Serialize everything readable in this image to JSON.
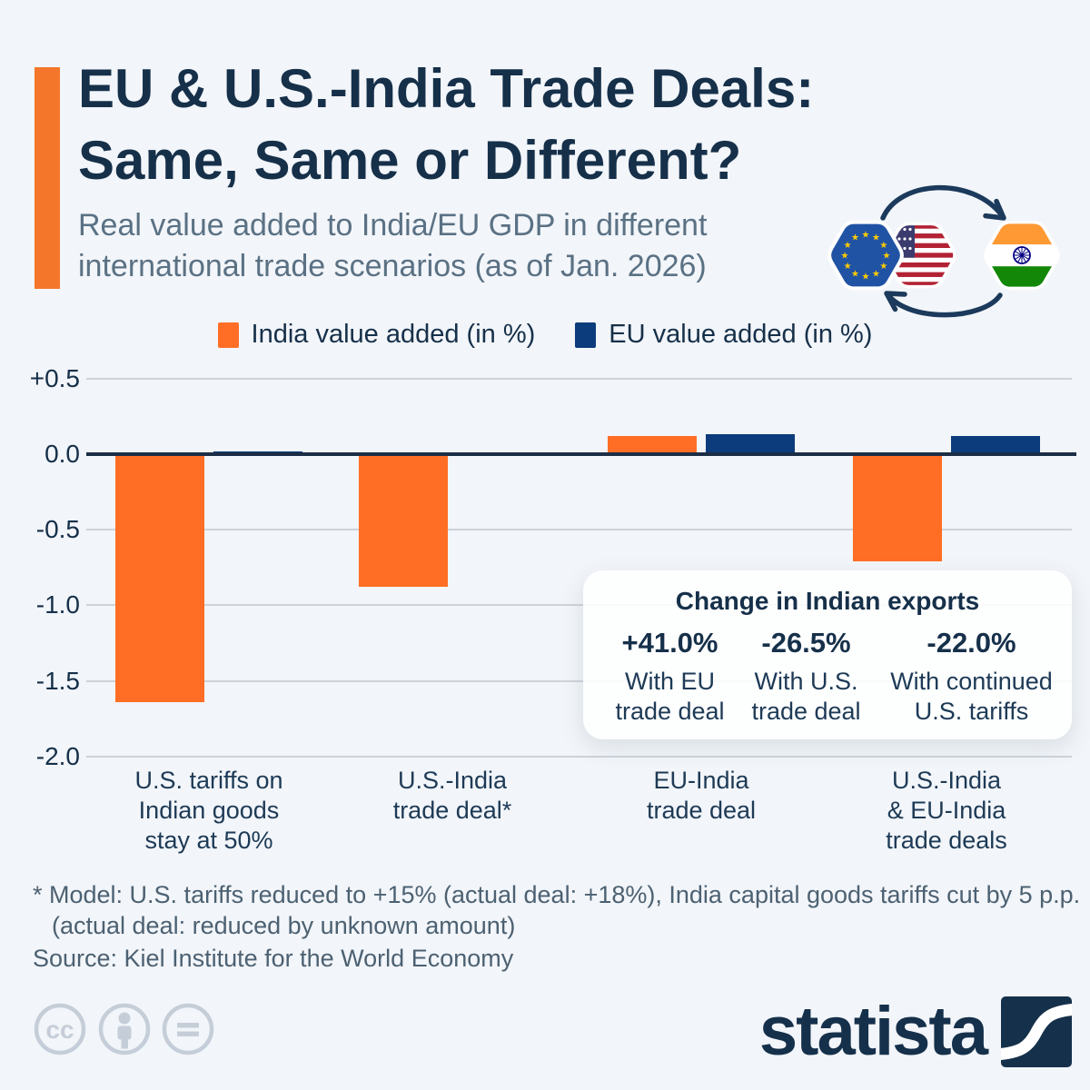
{
  "colors": {
    "background": "#f2f5f9",
    "accent_orange": "#f4762b",
    "title_navy": "#16304a",
    "subtitle_gray": "#5a7184",
    "bar_orange": "#ff6e24",
    "bar_navy": "#0c3c7b",
    "zero_line": "#1b2e45",
    "gridline": "#cdd3da",
    "footnote_gray": "#4c6172",
    "icon_gray": "#c5ced8"
  },
  "header": {
    "title_line1": "EU & U.S.-India Trade Deals:",
    "title_line2": "Same, Same or Different?",
    "subtitle": "Real value added to India/EU GDP in different\ninternational trade scenarios (as of Jan. 2026)"
  },
  "chart_data": {
    "type": "bar",
    "categories": [
      "U.S. tariffs on\nIndian goods\nstay at 50%",
      "U.S.-India\ntrade deal*",
      "EU-India\ntrade deal",
      "U.S.-India\n& EU-India\ntrade deals"
    ],
    "series": [
      {
        "name": "India value added (in %)",
        "color": "#ff6e24",
        "values": [
          -1.64,
          -0.88,
          0.12,
          -0.71
        ]
      },
      {
        "name": "EU value added (in %)",
        "color": "#0c3c7b",
        "values": [
          0.02,
          0.01,
          0.13,
          0.12
        ]
      }
    ],
    "title": "Real value added to India/EU GDP in different international trade scenarios (as of Jan. 2026)",
    "xlabel": "",
    "ylabel": "",
    "ylim": [
      -2.0,
      0.5
    ],
    "yticks": [
      {
        "label": "+0.5",
        "value": 0.5
      },
      {
        "label": "0.0",
        "value": 0.0
      },
      {
        "label": "-0.5",
        "value": -0.5
      },
      {
        "label": "-1.0",
        "value": -1.0
      },
      {
        "label": "-1.5",
        "value": -1.5
      },
      {
        "label": "-2.0",
        "value": -2.0
      }
    ],
    "grid": true,
    "legend_position": "top"
  },
  "inset": {
    "title": "Change in Indian exports",
    "items": [
      {
        "value": "+41.0%",
        "label": "With EU\ntrade deal"
      },
      {
        "value": "-26.5%",
        "label": "With U.S.\ntrade deal"
      },
      {
        "value": "-22.0%",
        "label": "With continued\nU.S. tariffs"
      }
    ]
  },
  "notes": {
    "footnote_line1": "* Model: U.S. tariffs reduced to +15% (actual deal: +18%), India capital goods tariffs cut by 5 p.p.",
    "footnote_line2": "(actual deal: reduced by unknown amount)",
    "source": "Source: Kiel Institute for the World Economy"
  },
  "branding": {
    "logo_text": "statista"
  }
}
